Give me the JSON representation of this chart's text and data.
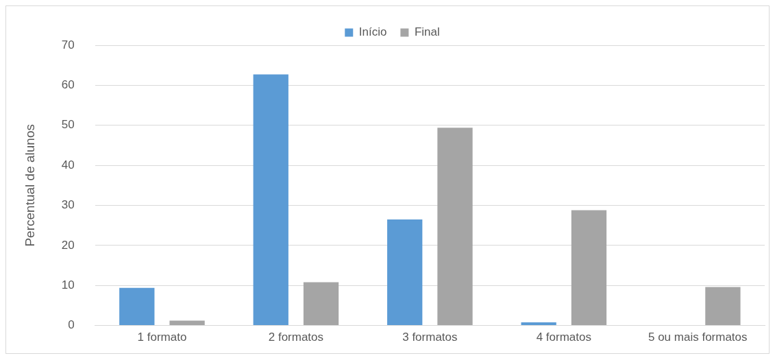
{
  "chart_data": {
    "type": "bar",
    "ylabel": "Percentual de alunos",
    "categories": [
      "1 formato",
      "2 formatos",
      "3 formatos",
      "4 formatos",
      "5 ou mais formatos"
    ],
    "series": [
      {
        "name": "Início",
        "color": "#5b9bd5",
        "values": [
          9.4,
          62.7,
          26.5,
          0.8,
          0
        ]
      },
      {
        "name": "Final",
        "color": "#a5a5a5",
        "values": [
          1.2,
          10.8,
          49.4,
          28.8,
          9.6
        ]
      }
    ],
    "ylim": [
      0,
      70
    ],
    "yticks": [
      0,
      10,
      20,
      30,
      40,
      50,
      60,
      70
    ],
    "grid": "y",
    "legend": "top"
  }
}
